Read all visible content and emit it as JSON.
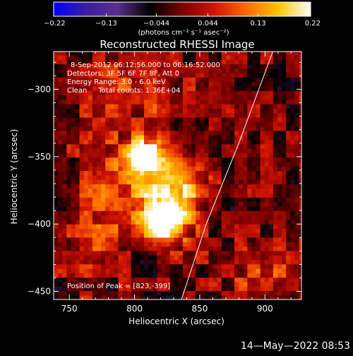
{
  "chart_data": {
    "type": "heatmap",
    "title": "Reconstructed RHESSI Image",
    "xlabel": "Heliocentric X (arcsec)",
    "ylabel": "Heliocentric Y (arcsec)",
    "xlim": [
      738,
      928
    ],
    "ylim": [
      -456,
      -272
    ],
    "xticks": [
      750,
      800,
      850,
      900
    ],
    "yticks": [
      -450,
      -400,
      -350,
      -300
    ],
    "colorbar": {
      "range": [
        -0.22,
        0.22
      ],
      "ticks": [
        "-0.22",
        "-0.13",
        "-0.044",
        "0.044",
        "0.13",
        "0.22"
      ],
      "label": "(photons cm⁻² s⁻¹ asec⁻²)",
      "colors": [
        "#0000ff",
        "#3a1fa0",
        "#5a2e8c",
        "#000000",
        "#7a0000",
        "#d01400",
        "#ff6a00",
        "#ffc400",
        "#ffffff"
      ]
    },
    "annotations": [
      "8-Sep-2012 06:12:56.000 to 06:16:52.000",
      "Detectors: 3F 5F 6F 7F 8F, Att 0",
      "Energy Range: 3.0 - 6.0 keV",
      "Clean     Total counts: 1.36E+04"
    ],
    "peak_label": "Position of Peak = [823,-399]",
    "peak": [
      823,
      -399
    ],
    "sources": [
      {
        "x": 806,
        "y": -350,
        "sx": 12,
        "sy": 9,
        "amp": 0.2
      },
      {
        "x": 822,
        "y": -399,
        "sx": 11,
        "sy": 12,
        "amp": 0.22
      },
      {
        "x": 830,
        "y": -375,
        "sx": 16,
        "sy": 20,
        "amp": 0.16
      },
      {
        "x": 790,
        "y": -380,
        "sx": 22,
        "sy": 22,
        "amp": 0.1
      },
      {
        "x": 800,
        "y": -305,
        "sx": 28,
        "sy": 20,
        "amp": 0.06
      },
      {
        "x": 760,
        "y": -420,
        "sx": 18,
        "sy": 18,
        "amp": 0.05
      },
      {
        "x": 900,
        "y": -440,
        "sx": 20,
        "sy": 16,
        "amp": 0.07
      }
    ],
    "limb": [
      [
        906,
        -272
      ],
      [
        880,
        -340
      ],
      [
        855,
        -400
      ],
      [
        836,
        -456
      ]
    ]
  },
  "timestamp": "14—May—2022 08:53"
}
